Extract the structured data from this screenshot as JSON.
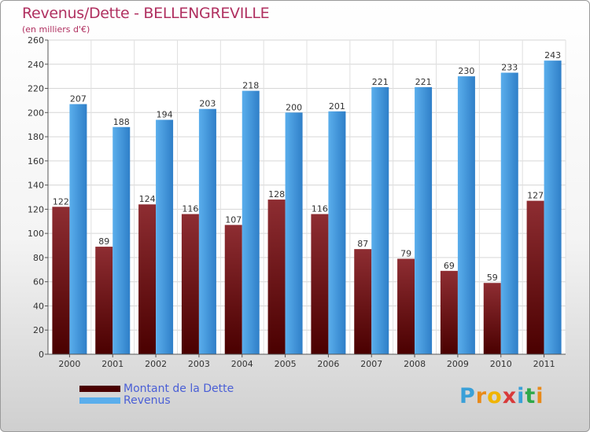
{
  "title": "Revenus/Dette - BELLENGREVILLE",
  "subtitle": "(en milliers d'€)",
  "colors": {
    "title": "#b03060",
    "debt_dark": "#4a0000",
    "debt_light": "#8e2d32",
    "revenue_dark": "#2f7fc8",
    "revenue_light": "#5aaeec",
    "legend_text": "#4a5fd6"
  },
  "legend": {
    "debt_label": "Montant de la Dette",
    "revenue_label": "Revenus"
  },
  "logo": {
    "text": "Proxiti",
    "letters": [
      "P",
      "r",
      "o",
      "x",
      "i",
      "t",
      "i"
    ],
    "letter_colors": [
      "#3aa0d8",
      "#e88a1a",
      "#f0b400",
      "#d83a3a",
      "#3aa0d8",
      "#2fa84a",
      "#e88a1a"
    ]
  },
  "chart_data": {
    "type": "bar",
    "title": "Revenus/Dette - BELLENGREVILLE",
    "ylabel": "(en milliers d'€)",
    "xlabel": "",
    "ylim": [
      0,
      260
    ],
    "ytick_step": 20,
    "grid": true,
    "legend_position": "bottom-left",
    "categories": [
      "2000",
      "2001",
      "2002",
      "2003",
      "2004",
      "2005",
      "2006",
      "2007",
      "2008",
      "2009",
      "2010",
      "2011"
    ],
    "series": [
      {
        "name": "Montant de la Dette",
        "values": [
          122,
          89,
          124,
          116,
          107,
          128,
          116,
          87,
          79,
          69,
          59,
          127
        ]
      },
      {
        "name": "Revenus",
        "values": [
          207,
          188,
          194,
          203,
          218,
          200,
          201,
          221,
          221,
          230,
          233,
          243
        ]
      }
    ]
  }
}
